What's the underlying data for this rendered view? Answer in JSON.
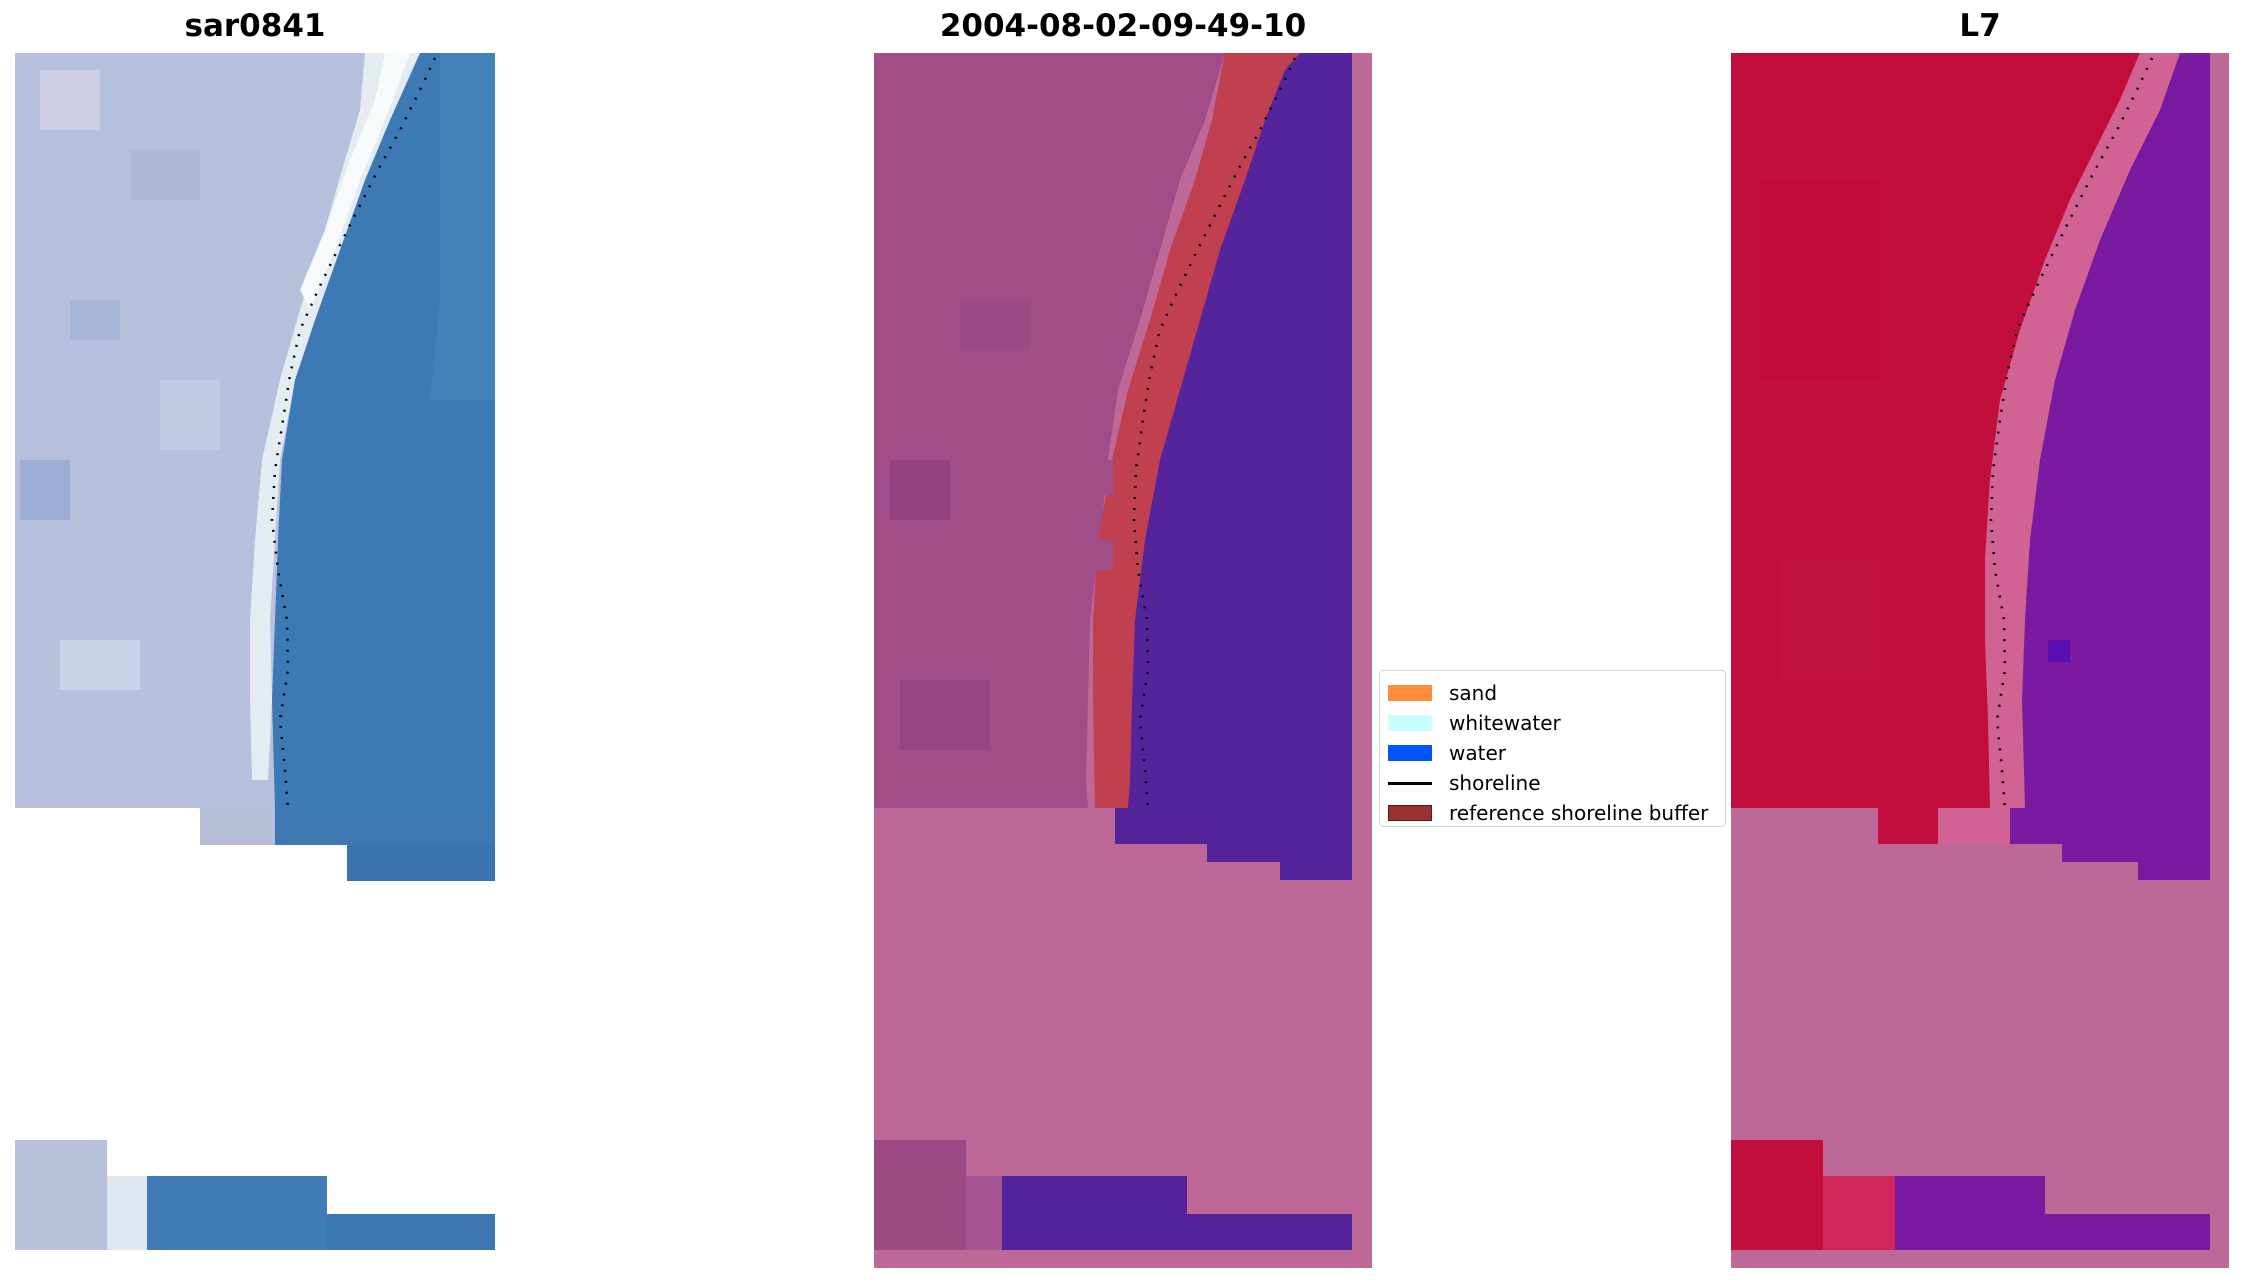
{
  "panels": [
    {
      "title": "sar0841"
    },
    {
      "title": "2004-08-02-09-49-10"
    },
    {
      "title": "L7"
    }
  ],
  "legend": {
    "items": [
      {
        "label": "sand",
        "color": "#ff8c3a",
        "kind": "patch"
      },
      {
        "label": "whitewater",
        "color": "#c8fcff",
        "kind": "patch"
      },
      {
        "label": "water",
        "color": "#0055ff",
        "kind": "patch"
      },
      {
        "label": "shoreline",
        "color": "#000000",
        "kind": "line"
      },
      {
        "label": "reference shoreline buffer",
        "color": "#9b3030",
        "kind": "patch"
      }
    ]
  },
  "colors": {
    "rgb_land": "#b8c2dc",
    "rgb_beach": "#e4ecf2",
    "rgb_water": "#3d7ab5",
    "overlay_land": "#a04d88",
    "overlay_buffer": "#c0404f",
    "overlay_water": "#55249a",
    "overlay_nodata": "#bd6896",
    "ndwi_land": "#c20e3c",
    "ndwi_transition": "#d16394",
    "ndwi_water": "#7a1aa0",
    "ndwi_nodata": "#bd6896"
  }
}
